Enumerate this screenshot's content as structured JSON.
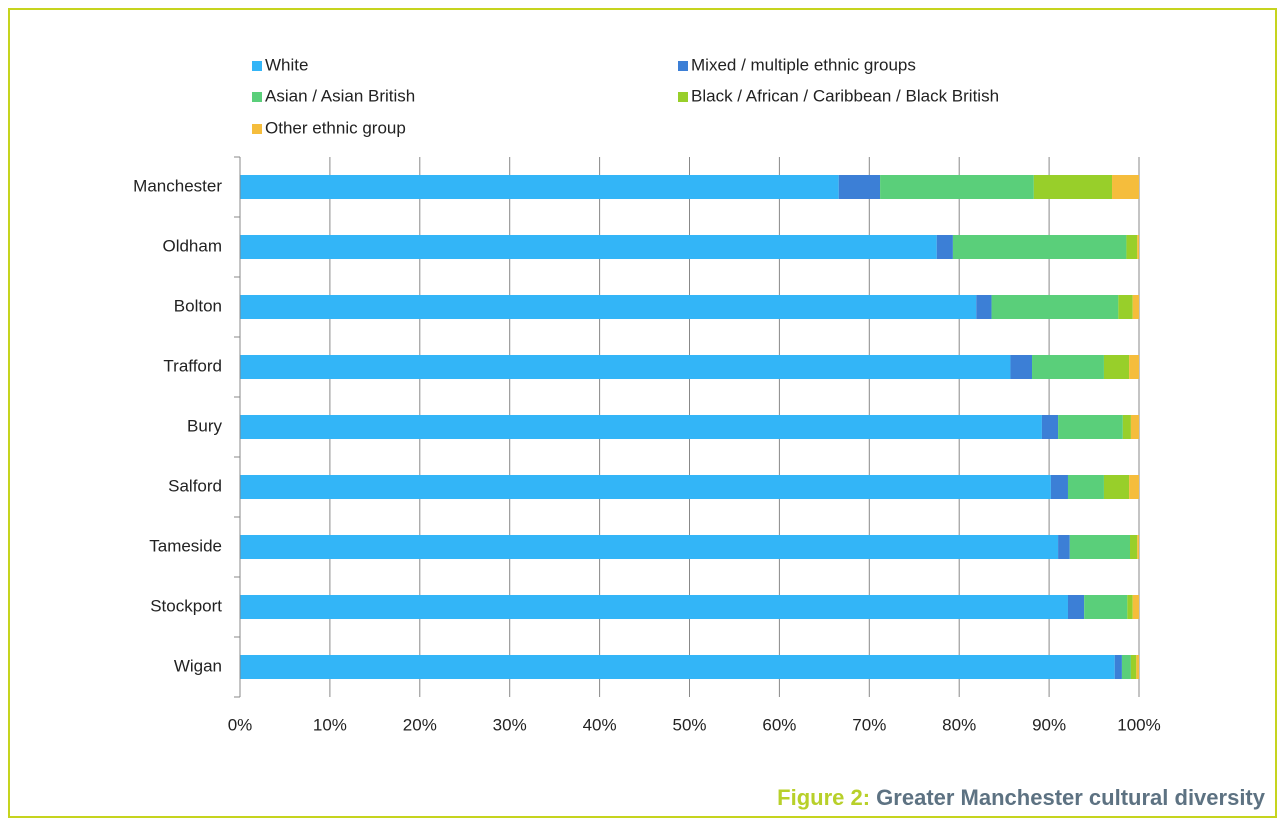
{
  "chart_data": {
    "type": "stacked_barh",
    "caption_label": "Figure 2:",
    "caption_text": "Greater Manchester cultural diversity",
    "categories": [
      "Manchester",
      "Oldham",
      "Bolton",
      "Trafford",
      "Bury",
      "Salford",
      "Tameside",
      "Stockport",
      "Wigan"
    ],
    "series": [
      {
        "name": "White",
        "color": "#33b5f7",
        "values": [
          66.6,
          77.5,
          81.9,
          85.7,
          89.2,
          90.2,
          91.0,
          92.1,
          97.3
        ]
      },
      {
        "name": "Mixed / multiple ethnic groups",
        "color": "#3c7fd6",
        "values": [
          4.6,
          1.8,
          1.7,
          2.4,
          1.8,
          1.9,
          1.3,
          1.8,
          0.8
        ]
      },
      {
        "name": "Asian / Asian British",
        "color": "#5acf7a",
        "values": [
          17.1,
          19.3,
          14.1,
          8.0,
          7.2,
          4.0,
          6.7,
          4.8,
          1.0
        ]
      },
      {
        "name": "Black / African / Caribbean / Black British",
        "color": "#98cf2a",
        "values": [
          8.7,
          1.2,
          1.6,
          2.8,
          0.9,
          2.8,
          0.8,
          0.6,
          0.6
        ]
      },
      {
        "name": "Other ethnic group",
        "color": "#f5bd3c",
        "values": [
          3.0,
          0.2,
          0.7,
          1.1,
          0.9,
          1.1,
          0.2,
          0.7,
          0.3
        ]
      }
    ],
    "xlim": [
      0,
      100
    ],
    "xticks": [
      {
        "value": 0,
        "label": "0%"
      },
      {
        "value": 10,
        "label": "10%"
      },
      {
        "value": 20,
        "label": "20%"
      },
      {
        "value": 30,
        "label": "30%"
      },
      {
        "value": 40,
        "label": "40%"
      },
      {
        "value": 50,
        "label": "50%"
      },
      {
        "value": 60,
        "label": "60%"
      },
      {
        "value": 70,
        "label": "70%"
      },
      {
        "value": 80,
        "label": "80%"
      },
      {
        "value": 90,
        "label": "90%"
      },
      {
        "value": 100,
        "label": "100%"
      }
    ],
    "grid": true
  }
}
